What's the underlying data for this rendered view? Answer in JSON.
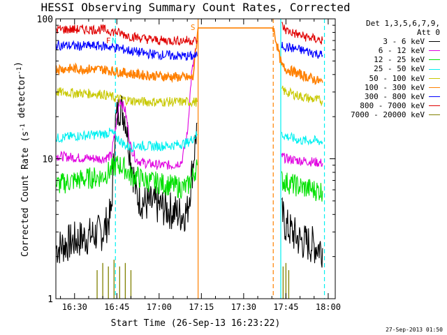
{
  "title": "HESSI Observing Summary Count Rates, Corrected",
  "footer_date": "27-Sep-2013 01:50",
  "legend": {
    "header": [
      "Det 1,3,5,6,7,9,",
      "Att 0"
    ],
    "entries": [
      {
        "label": "3 - 6 keV",
        "color": "#000000"
      },
      {
        "label": "6 - 12 keV",
        "color": "#e000e0"
      },
      {
        "label": "12 - 25 keV",
        "color": "#00e000"
      },
      {
        "label": "25 - 50 keV",
        "color": "#00f0f0"
      },
      {
        "label": "50 - 100 keV",
        "color": "#c8c800"
      },
      {
        "label": "100 - 300 keV",
        "color": "#ff8000"
      },
      {
        "label": "300 - 800 keV",
        "color": "#0000ff"
      },
      {
        "label": "800 - 7000 keV",
        "color": "#e00000"
      },
      {
        "label": "7000 - 20000 keV",
        "color": "#808000"
      }
    ]
  },
  "chart_data": {
    "type": "line",
    "title": "HESSI Observing Summary Count Rates, Corrected",
    "xlabel": "Start Time (26-Sep-13 16:23:22)",
    "ylabel": "Corrected Count Rate (s⁻¹ detector⁻¹)",
    "yscale": "log",
    "ylim": [
      1,
      100
    ],
    "xlim": [
      "16:23:22",
      "18:02:30"
    ],
    "x_ticks": [
      "16:30",
      "16:45",
      "17:00",
      "17:15",
      "17:30",
      "17:45",
      "18:00"
    ],
    "y_ticks": [
      "1",
      "10",
      "100"
    ],
    "flag_labels": [
      {
        "text": "S",
        "time": "17:12:00",
        "color": "#ff8000"
      },
      {
        "text": "F",
        "time": "16:42:00",
        "color": "#e00000"
      },
      {
        "text": "N",
        "time": "16:44:00",
        "color": "#00f0f0"
      }
    ],
    "vertical_markers": [
      {
        "time": "16:44:30",
        "color": "#00f0f0",
        "style": "dashed"
      },
      {
        "time": "17:13:50",
        "color": "#ff8000",
        "style": "solid"
      },
      {
        "time": "17:40:30",
        "color": "#ff8000",
        "style": "dashed"
      },
      {
        "time": "17:43:10",
        "color": "#00f0f0",
        "style": "solid"
      },
      {
        "time": "17:58:40",
        "color": "#00f0f0",
        "style": "dashed"
      }
    ],
    "series": [
      {
        "name": "3 - 6 keV",
        "color": "#000000",
        "x": [
          "16:23:30",
          "16:30:00",
          "16:40:00",
          "16:43:00",
          "16:44:30",
          "16:46:00",
          "16:48:00",
          "16:50:00",
          "16:52:00",
          "16:55:00",
          "17:00:00",
          "17:05:00",
          "17:08:00",
          "17:10:00",
          "17:12:00",
          "17:13:30",
          "17:43:30",
          "17:45:00",
          "17:50:00",
          "17:55:00",
          "17:58:00"
        ],
        "y": [
          2.3,
          2.6,
          3.0,
          4.0,
          18,
          24,
          20,
          10,
          5.5,
          4.8,
          4.6,
          4.2,
          4.0,
          4.2,
          9,
          18,
          4.0,
          3.3,
          2.6,
          2.4,
          2.3
        ]
      },
      {
        "name": "6 - 12 keV",
        "color": "#e000e0",
        "x": [
          "16:23:30",
          "16:30:00",
          "16:40:00",
          "16:43:00",
          "16:44:30",
          "16:46:00",
          "16:48:00",
          "16:50:00",
          "16:52:00",
          "16:55:00",
          "17:00:00",
          "17:05:00",
          "17:08:00",
          "17:10:00",
          "17:11:30",
          "17:13:00",
          "17:43:30",
          "17:45:00",
          "17:50:00",
          "17:55:00",
          "17:58:00"
        ],
        "y": [
          10.5,
          10.2,
          10.0,
          10.5,
          16,
          27,
          22,
          12,
          9.8,
          9.3,
          9.0,
          9.0,
          9.5,
          15,
          40,
          60,
          10.5,
          10.0,
          9.7,
          9.5,
          9.3
        ]
      },
      {
        "name": "12 - 25 keV",
        "color": "#00e000",
        "x": [
          "16:23:30",
          "16:30:00",
          "16:40:00",
          "16:43:00",
          "16:44:30",
          "16:46:00",
          "16:48:00",
          "16:50:00",
          "16:52:00",
          "16:55:00",
          "17:00:00",
          "17:05:00",
          "17:08:00",
          "17:10:00",
          "17:12:00",
          "17:13:30",
          "17:43:30",
          "17:45:00",
          "17:50:00",
          "17:55:00",
          "17:58:00"
        ],
        "y": [
          6.5,
          7.0,
          7.5,
          8.3,
          9.0,
          9.0,
          8.5,
          7.5,
          7.5,
          7.0,
          6.7,
          6.4,
          6.2,
          6.3,
          7.5,
          9.0,
          7.0,
          6.8,
          6.3,
          6.0,
          5.9
        ]
      },
      {
        "name": "25 - 50 keV",
        "color": "#00f0f0",
        "x": [
          "16:23:30",
          "16:30:00",
          "16:40:00",
          "16:43:00",
          "16:44:30",
          "16:46:00",
          "16:48:00",
          "16:50:00",
          "16:52:00",
          "16:55:00",
          "17:00:00",
          "17:05:00",
          "17:08:00",
          "17:10:00",
          "17:12:00",
          "17:13:30",
          "17:43:30",
          "17:45:00",
          "17:50:00",
          "17:55:00",
          "17:58:00"
        ],
        "y": [
          14,
          14.5,
          15,
          15.5,
          14.5,
          13.5,
          12.5,
          12.0,
          12.5,
          12.3,
          12.3,
          12.5,
          12.8,
          13,
          14,
          15,
          15,
          14.5,
          13.5,
          13.5,
          13.2
        ]
      },
      {
        "name": "50 - 100 keV",
        "color": "#c8c800",
        "x": [
          "16:23:30",
          "16:30:00",
          "16:40:00",
          "16:45:00",
          "16:50:00",
          "16:55:00",
          "17:00:00",
          "17:05:00",
          "17:10:00",
          "17:13:30",
          "17:43:30",
          "17:45:00",
          "17:50:00",
          "17:55:00",
          "17:58:00"
        ],
        "y": [
          30,
          29.5,
          29,
          27,
          26,
          25.5,
          25.5,
          25.5,
          25.5,
          25.5,
          31,
          30,
          28,
          26.5,
          26
        ]
      },
      {
        "name": "100 - 300 keV",
        "color": "#ff8000",
        "x": [
          "16:23:30",
          "16:30:00",
          "16:40:00",
          "16:45:00",
          "16:50:00",
          "16:55:00",
          "17:00:00",
          "17:05:00",
          "17:10:00",
          "17:12:00",
          "17:13:50",
          "17:40:30",
          "17:43:30",
          "17:45:00",
          "17:50:00",
          "17:55:00",
          "17:58:00"
        ],
        "y": [
          44,
          44,
          43.5,
          42,
          40.5,
          39.5,
          39,
          38.5,
          38,
          38,
          86,
          86,
          46,
          44,
          40,
          37,
          35
        ]
      },
      {
        "name": "300 - 800 keV",
        "color": "#0000ff",
        "x": [
          "16:23:30",
          "16:30:00",
          "16:40:00",
          "16:45:00",
          "16:50:00",
          "16:55:00",
          "17:00:00",
          "17:05:00",
          "17:10:00",
          "17:13:30",
          "17:43:30",
          "17:45:00",
          "17:50:00",
          "17:55:00",
          "17:58:00"
        ],
        "y": [
          65,
          64,
          64,
          62,
          59,
          56.5,
          55.5,
          54.5,
          54,
          54,
          65,
          63,
          60,
          57,
          55
        ]
      },
      {
        "name": "800 - 7000 keV",
        "color": "#e00000",
        "x": [
          "16:23:30",
          "16:30:00",
          "16:40:00",
          "16:45:00",
          "16:50:00",
          "16:55:00",
          "17:00:00",
          "17:05:00",
          "17:10:00",
          "17:13:30",
          "17:43:30",
          "17:45:00",
          "17:50:00",
          "17:55:00",
          "17:58:00"
        ],
        "y": [
          84,
          84,
          84,
          80,
          75,
          72,
          70,
          70,
          70,
          70,
          90,
          83,
          76,
          72,
          70
        ]
      },
      {
        "name": "7000 - 20000 keV",
        "color": "#808000",
        "x": [
          "16:38:00",
          "16:40:00",
          "16:42:00",
          "16:44:00",
          "16:46:00",
          "16:48:00",
          "16:50:00",
          "17:44:00",
          "17:45:00",
          "17:46:00"
        ],
        "y": [
          1.6,
          1.8,
          1.7,
          1.9,
          1.7,
          1.8,
          1.6,
          1.7,
          1.8,
          1.6
        ]
      }
    ]
  }
}
